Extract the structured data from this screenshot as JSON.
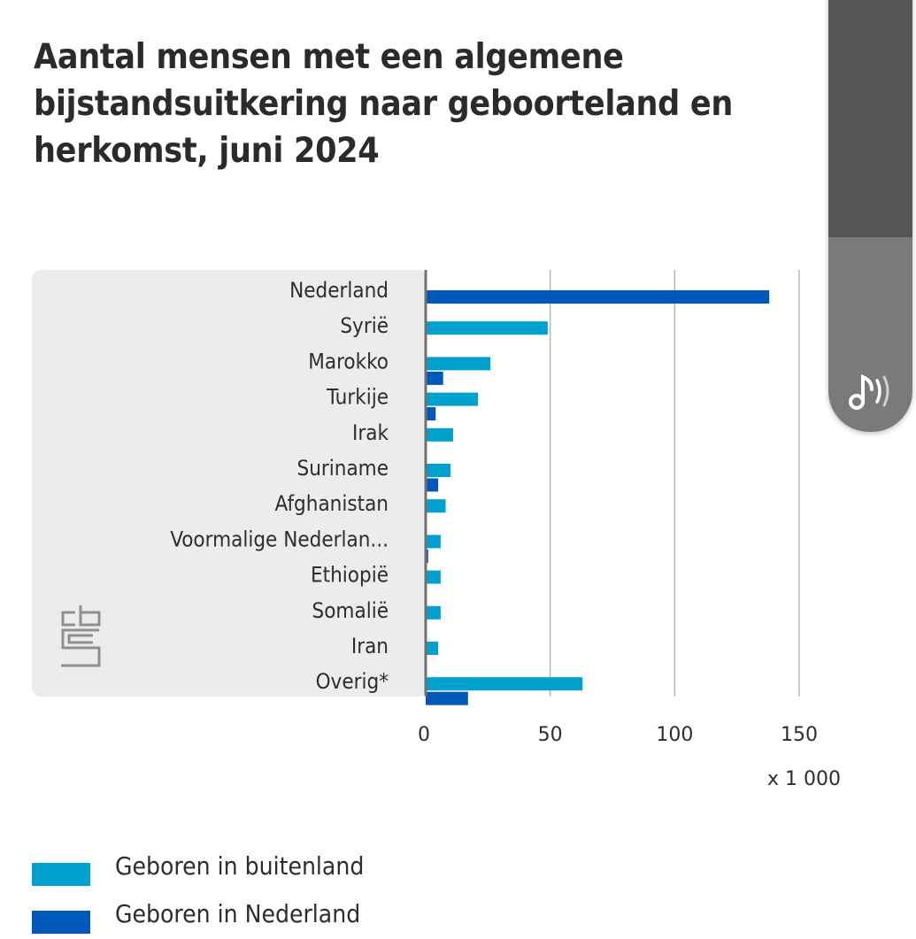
{
  "chart_data": {
    "type": "bar",
    "orientation": "horizontal",
    "title": "Aantal mensen met een algemene bijstandsuitkering naar geboorteland en herkomst, juni 2024",
    "categories": [
      "Nederland",
      "Syrië",
      "Marokko",
      "Turkije",
      "Irak",
      "Suriname",
      "Afghanistan",
      "Voormalige Nederlan...",
      "Ethiopië",
      "Somalië",
      "Iran",
      "Overig*"
    ],
    "series": [
      {
        "name": "Geboren in buitenland",
        "color": "#00a1cd",
        "values": [
          0,
          49,
          26,
          21,
          11,
          10,
          8,
          6,
          6,
          6,
          5,
          63
        ]
      },
      {
        "name": "Geboren in Nederland",
        "color": "#0058b8",
        "values": [
          138,
          0,
          7,
          4,
          0,
          5,
          0,
          1,
          0,
          0,
          0,
          17
        ]
      }
    ],
    "xlim": [
      0,
      150
    ],
    "xticks": [
      "0",
      "50",
      "100",
      "150"
    ],
    "unit_label": "x 1 000",
    "legend": "bottom-left"
  },
  "colors": {
    "panel": "#ececec",
    "grid": "#b8b8b8",
    "axis": "#707070"
  },
  "icons": {
    "logo": "cbs-logo-icon",
    "audio": "audio-speaker-icon"
  }
}
